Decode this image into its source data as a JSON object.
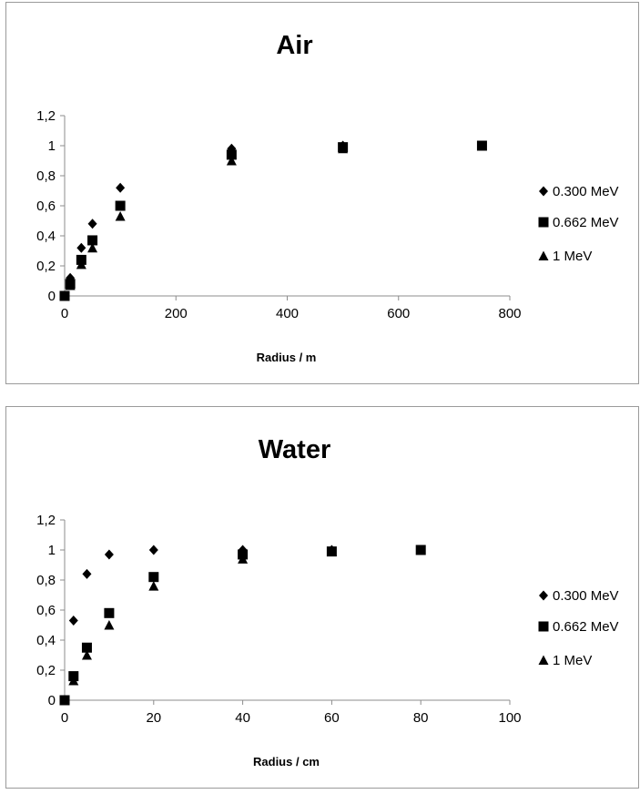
{
  "chart_data": [
    {
      "type": "scatter",
      "title": "Air",
      "xlabel": "Radius / m",
      "ylabel": "",
      "xlim": [
        0,
        800
      ],
      "ylim": [
        0,
        1.2
      ],
      "x_ticks": [
        "0",
        "200",
        "400",
        "600",
        "800"
      ],
      "y_ticks": [
        "0",
        "0,2",
        "0,4",
        "0,6",
        "0,8",
        "1",
        "1,2"
      ],
      "legend_position": "right",
      "series": [
        {
          "name": "0.300 MeV",
          "marker": "diamond",
          "x": [
            0,
            10,
            30,
            50,
            100,
            300,
            500
          ],
          "y": [
            0.0,
            0.12,
            0.32,
            0.48,
            0.72,
            0.98,
            1.0
          ]
        },
        {
          "name": "0.662 MeV",
          "marker": "square",
          "x": [
            0,
            10,
            30,
            50,
            100,
            300,
            500,
            750
          ],
          "y": [
            0.0,
            0.08,
            0.24,
            0.37,
            0.6,
            0.94,
            0.99,
            1.0
          ]
        },
        {
          "name": "1 MeV",
          "marker": "triangle",
          "x": [
            0,
            10,
            30,
            50,
            100,
            300,
            500
          ],
          "y": [
            0.0,
            0.07,
            0.21,
            0.32,
            0.53,
            0.9,
            0.98
          ]
        }
      ]
    },
    {
      "type": "scatter",
      "title": "Water",
      "xlabel": "Radius / cm",
      "ylabel": "",
      "xlim": [
        0,
        100
      ],
      "ylim": [
        0,
        1.2
      ],
      "x_ticks": [
        "0",
        "20",
        "40",
        "60",
        "80",
        "100"
      ],
      "y_ticks": [
        "0",
        "0,2",
        "0,4",
        "0,6",
        "0,8",
        "1",
        "1,2"
      ],
      "legend_position": "right",
      "series": [
        {
          "name": "0.300 MeV",
          "marker": "diamond",
          "x": [
            0,
            2,
            5,
            10,
            20,
            40,
            60
          ],
          "y": [
            0.0,
            0.53,
            0.84,
            0.97,
            1.0,
            1.0,
            1.0
          ]
        },
        {
          "name": "0.662 MeV",
          "marker": "square",
          "x": [
            0,
            2,
            5,
            10,
            20,
            40,
            60,
            80
          ],
          "y": [
            0.0,
            0.16,
            0.35,
            0.58,
            0.82,
            0.97,
            0.99,
            1.0
          ]
        },
        {
          "name": "1 MeV",
          "marker": "triangle",
          "x": [
            0,
            2,
            5,
            10,
            20,
            40,
            60
          ],
          "y": [
            0.0,
            0.13,
            0.3,
            0.5,
            0.76,
            0.94,
            0.99
          ]
        }
      ]
    }
  ],
  "colors": {
    "marker": "#000000",
    "axis": "#8c8c8c",
    "border": "#9a9a9a"
  }
}
